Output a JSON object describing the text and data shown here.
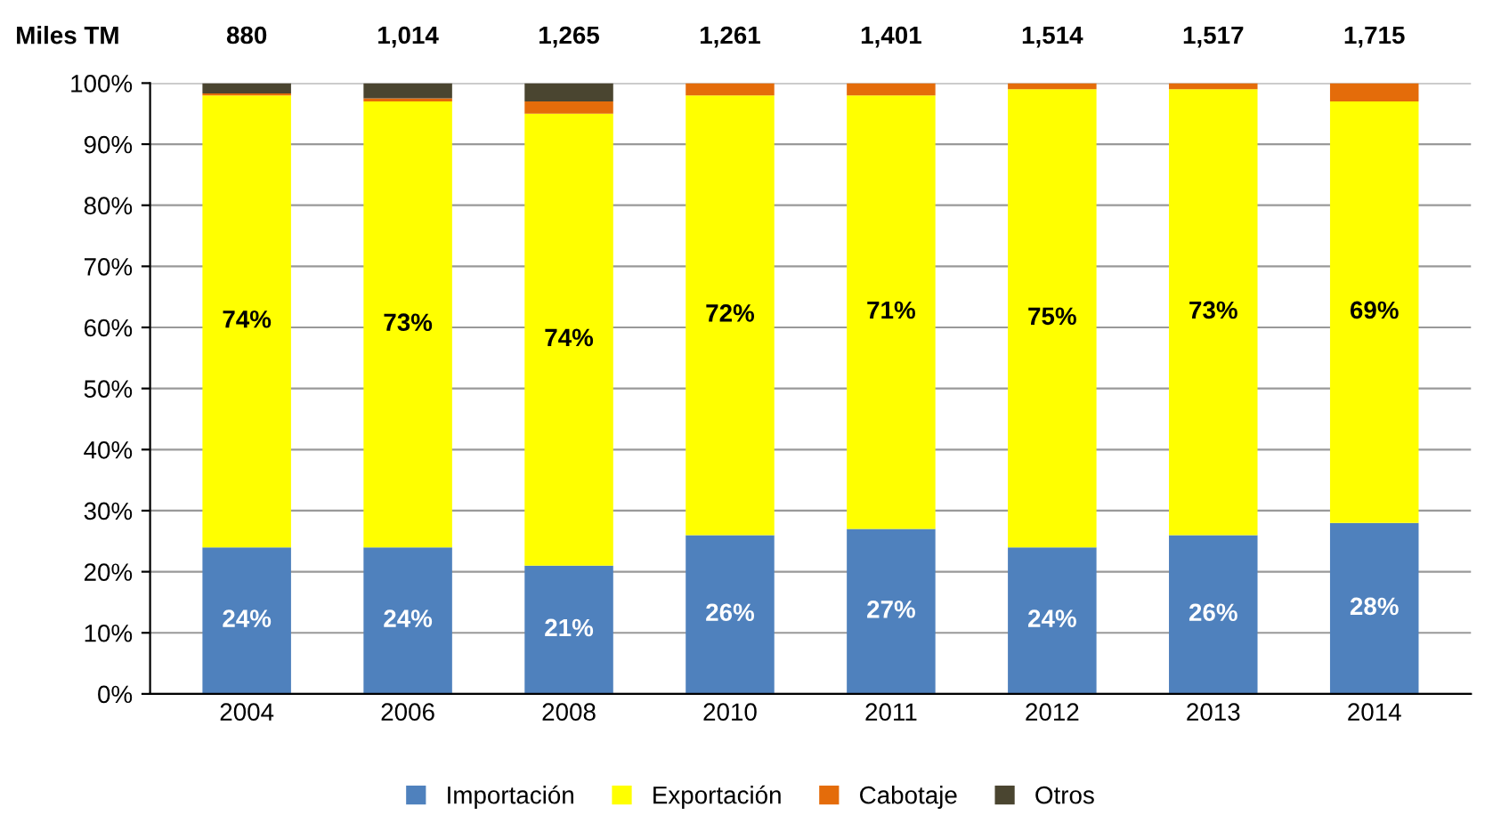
{
  "chart_data": {
    "type": "bar",
    "stacked": true,
    "categories": [
      "2004",
      "2006",
      "2008",
      "2010",
      "2011",
      "2012",
      "2013",
      "2014"
    ],
    "series": [
      {
        "name": "Importación",
        "color": "#4f81bd",
        "values": [
          24,
          24,
          21,
          26,
          27,
          24,
          26,
          28
        ],
        "value_labels": [
          "24%",
          "24%",
          "21%",
          "26%",
          "27%",
          "24%",
          "26%",
          "28%"
        ]
      },
      {
        "name": "Exportación",
        "color": "#ffff00",
        "values": [
          74,
          73,
          74,
          72,
          71,
          75,
          73,
          69
        ],
        "value_labels": [
          "74%",
          "73%",
          "74%",
          "72%",
          "71%",
          "75%",
          "73%",
          "69%"
        ]
      },
      {
        "name": "Cabotaje",
        "color": "#e46c0a",
        "values": [
          0.3,
          0.5,
          2,
          2,
          2,
          1,
          1,
          3
        ]
      },
      {
        "name": "Otros",
        "color": "#4a4530",
        "values": [
          1.7,
          2.5,
          3,
          0,
          0,
          0,
          0,
          0
        ]
      }
    ],
    "ylim": [
      0,
      100
    ],
    "yticks": [
      {
        "value": 0,
        "label": "0%"
      },
      {
        "value": 10,
        "label": "10%"
      },
      {
        "value": 20,
        "label": "20%"
      },
      {
        "value": 30,
        "label": "30%"
      },
      {
        "value": 40,
        "label": "40%"
      },
      {
        "value": 50,
        "label": "50%"
      },
      {
        "value": 60,
        "label": "60%"
      },
      {
        "value": 70,
        "label": "70%"
      },
      {
        "value": 80,
        "label": "80%"
      },
      {
        "value": 90,
        "label": "90%"
      },
      {
        "value": 100,
        "label": "100%"
      }
    ],
    "grid": "y",
    "legend": "bottom",
    "annotations": [
      "Miles TM",
      "880",
      "1,014",
      "1,265",
      "1,261",
      "1,401",
      "1,514",
      "1,517",
      "1,715"
    ]
  }
}
